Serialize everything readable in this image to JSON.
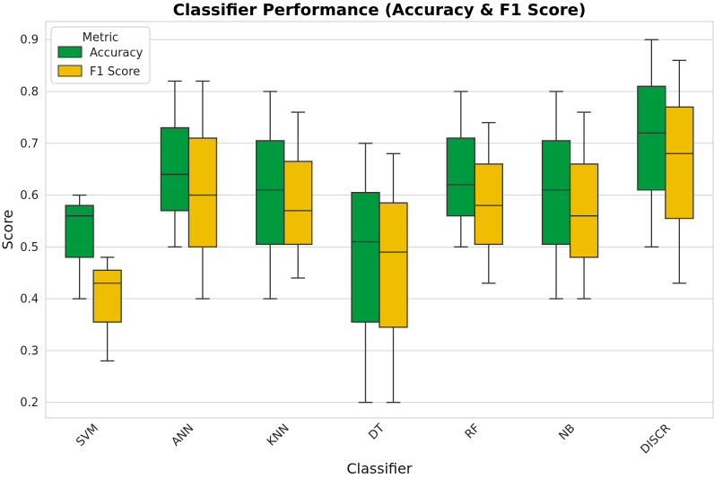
{
  "chart_data": {
    "type": "box",
    "title": "Classifier Performance (Accuracy & F1 Score)",
    "xlabel": "Classifier",
    "ylabel": "Score",
    "ylim": [
      0.17,
      0.935
    ],
    "yticks": [
      0.2,
      0.3,
      0.4,
      0.5,
      0.6,
      0.7,
      0.8,
      0.9
    ],
    "grid": true,
    "legend": {
      "title": "Metric",
      "position": "top-left"
    },
    "categories": [
      "SVM",
      "ANN",
      "KNN",
      "DT",
      "RF",
      "NB",
      "DISCR"
    ],
    "series": [
      {
        "name": "Accuracy",
        "color": "#009a3e",
        "boxes": [
          {
            "min": 0.4,
            "q1": 0.48,
            "median": 0.56,
            "q3": 0.58,
            "max": 0.6
          },
          {
            "min": 0.5,
            "q1": 0.57,
            "median": 0.64,
            "q3": 0.73,
            "max": 0.82
          },
          {
            "min": 0.4,
            "q1": 0.505,
            "median": 0.61,
            "q3": 0.705,
            "max": 0.8
          },
          {
            "min": 0.2,
            "q1": 0.355,
            "median": 0.51,
            "q3": 0.605,
            "max": 0.7
          },
          {
            "min": 0.5,
            "q1": 0.56,
            "median": 0.62,
            "q3": 0.71,
            "max": 0.8
          },
          {
            "min": 0.4,
            "q1": 0.505,
            "median": 0.61,
            "q3": 0.705,
            "max": 0.8
          },
          {
            "min": 0.5,
            "q1": 0.61,
            "median": 0.72,
            "q3": 0.81,
            "max": 0.9
          }
        ]
      },
      {
        "name": "F1 Score",
        "color": "#f0be00",
        "boxes": [
          {
            "min": 0.28,
            "q1": 0.355,
            "median": 0.43,
            "q3": 0.455,
            "max": 0.48
          },
          {
            "min": 0.4,
            "q1": 0.5,
            "median": 0.6,
            "q3": 0.71,
            "max": 0.82
          },
          {
            "min": 0.44,
            "q1": 0.505,
            "median": 0.57,
            "q3": 0.665,
            "max": 0.76
          },
          {
            "min": 0.2,
            "q1": 0.345,
            "median": 0.49,
            "q3": 0.585,
            "max": 0.68
          },
          {
            "min": 0.43,
            "q1": 0.505,
            "median": 0.58,
            "q3": 0.66,
            "max": 0.74
          },
          {
            "min": 0.4,
            "q1": 0.48,
            "median": 0.56,
            "q3": 0.66,
            "max": 0.76
          },
          {
            "min": 0.43,
            "q1": 0.555,
            "median": 0.68,
            "q3": 0.77,
            "max": 0.86
          }
        ]
      }
    ]
  }
}
